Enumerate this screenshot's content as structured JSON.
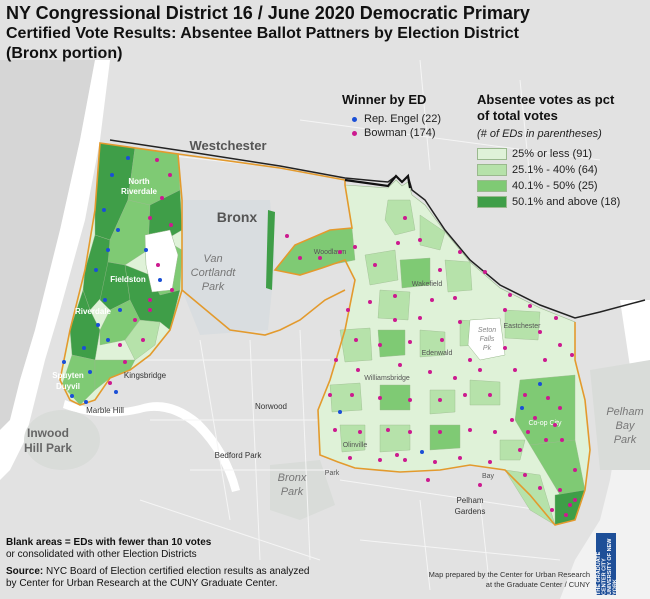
{
  "title": {
    "line1": "NY Congressional District 16 / June 2020 Democratic Primary",
    "line2": "Certified Vote Results: Absentee Ballot Pattners by Election District",
    "line3": "(Bronx portion)"
  },
  "winner_legend": {
    "heading": "Winner by ED",
    "items": [
      {
        "label": "Rep. Engel (22)",
        "color": "#1a4fd6"
      },
      {
        "label": "Bowman (174)",
        "color": "#cc1a8f"
      }
    ]
  },
  "share_legend": {
    "heading_line1": "Absentee votes as pct",
    "heading_line2": "of total votes",
    "subheading": "(# of EDs in parentheses)",
    "classes": [
      {
        "label": "25% or less (91)",
        "color": "#dff2d8"
      },
      {
        "label": "25.1% - 40% (64)",
        "color": "#b6e2aa"
      },
      {
        "label": "40.1% - 50% (25)",
        "color": "#7fca74"
      },
      {
        "label": "50.1% and above (18)",
        "color": "#3f9e48"
      }
    ]
  },
  "place_labels": {
    "westchester": "Westchester",
    "bronx": "Bronx",
    "van_cortlandt_line1": "Van",
    "van_cortlandt_line2": "Cortlandt",
    "van_cortlandt_line3": "Park",
    "north_riverdale_line1": "North",
    "north_riverdale_line2": "Riverdale",
    "fieldston": "Fieldston",
    "riverdale": "Riverdale",
    "spuyten_line1": "Spuyten",
    "spuyten_line2": "Duyvil",
    "kingsbridge": "Kingsbridge",
    "marble_hill": "Marble Hill",
    "inwood_line1": "Inwood",
    "inwood_line2": "Hill Park",
    "norwood": "Norwood",
    "bedford_park": "Bedford Park",
    "bronx_park_line1": "Bronx",
    "bronx_park_line2": "Park",
    "pelham_gardens_line1": "Pelham",
    "pelham_gardens_line2": "Gardens",
    "pelham_bay_line1": "Pelham",
    "pelham_bay_line2": "Bay",
    "pelham_bay_line3": "Park",
    "woodlawn": "Woodlawn",
    "wakefield": "Wakefield",
    "eastchester": "Eastchester",
    "seton_line1": "Seton",
    "seton_line2": "Falls",
    "seton_line3": "Pk",
    "edenwald": "Edenwald",
    "williamsbridge": "Williamsbridge",
    "olinville": "Olinville",
    "co_op_city": "Co-op City",
    "baychester": "Bay",
    "park_left": "Park"
  },
  "notes": {
    "blank_line1": "Blank areas = EDs with fewer than 10 votes",
    "blank_line2": "or consolidated with other Election Districts",
    "source_label": "Source:",
    "source_line1": "NYC Board of Election certified election results as analyzed",
    "source_line2": "by Center for Urban Research at the CUNY Graduate Center."
  },
  "credit": {
    "line1": "Map prepared by the Center for Urban Research",
    "line2": "at the Graduate Center / CUNY"
  },
  "logo_text": "THE GRADUATE CENTER CITY UNIVERSITY OF NEW YORK",
  "colors": {
    "district_outline": "#e39a2d",
    "county_line": "#222222",
    "water": "#ffffff",
    "basemap": "#e2e2e2"
  }
}
